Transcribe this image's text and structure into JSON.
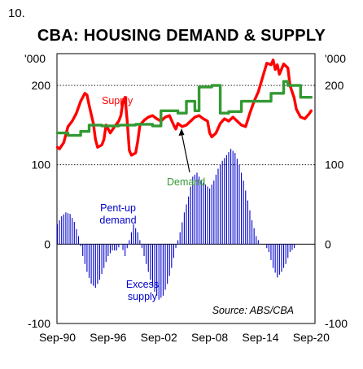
{
  "figure_number": "10.",
  "chart_data": {
    "type": "line",
    "title": "CBA: HOUSING DEMAND & SUPPLY",
    "unit_left": "'000",
    "unit_right": "'000",
    "y_ticks": [
      "200",
      "100",
      "0",
      "-100"
    ],
    "x_ticks": [
      "Sep-90",
      "Sep-96",
      "Sep-02",
      "Sep-08",
      "Sep-14",
      "Sep-20"
    ],
    "ylim": [
      -100,
      240
    ],
    "xlim": [
      1990.7,
      2021.2
    ],
    "grid": true,
    "source": "Source: ABS/CBA",
    "colors": {
      "supply": "#ff0000",
      "demand": "#339933",
      "pentup": "#0000cc"
    },
    "series": [
      {
        "name": "Supply",
        "color": "#ff0000",
        "points": [
          [
            1990.75,
            122
          ],
          [
            1991.0,
            120
          ],
          [
            1991.5,
            128
          ],
          [
            1991.75,
            138
          ],
          [
            1992.0,
            148
          ],
          [
            1992.5,
            155
          ],
          [
            1993.0,
            165
          ],
          [
            1993.5,
            180
          ],
          [
            1994.0,
            190
          ],
          [
            1994.25,
            188
          ],
          [
            1994.5,
            175
          ],
          [
            1995.0,
            152
          ],
          [
            1995.25,
            132
          ],
          [
            1995.5,
            122
          ],
          [
            1996.0,
            125
          ],
          [
            1996.25,
            132
          ],
          [
            1996.5,
            150
          ],
          [
            1997.0,
            140
          ],
          [
            1997.5,
            148
          ],
          [
            1998.0,
            155
          ],
          [
            1998.25,
            162
          ],
          [
            1998.5,
            180
          ],
          [
            1998.75,
            185
          ],
          [
            1999.0,
            155
          ],
          [
            1999.25,
            118
          ],
          [
            1999.5,
            112
          ],
          [
            2000.0,
            115
          ],
          [
            2000.25,
            130
          ],
          [
            2000.5,
            150
          ],
          [
            2001.0,
            156
          ],
          [
            2001.5,
            160
          ],
          [
            2002.0,
            162
          ],
          [
            2002.5,
            158
          ],
          [
            2003.0,
            155
          ],
          [
            2003.5,
            160
          ],
          [
            2004.0,
            162
          ],
          [
            2004.5,
            150
          ],
          [
            2004.75,
            145
          ],
          [
            2005.0,
            152
          ],
          [
            2005.5,
            148
          ],
          [
            2006.0,
            150
          ],
          [
            2006.5,
            155
          ],
          [
            2007.0,
            160
          ],
          [
            2007.5,
            162
          ],
          [
            2008.0,
            158
          ],
          [
            2008.5,
            155
          ],
          [
            2008.75,
            140
          ],
          [
            2009.0,
            135
          ],
          [
            2009.5,
            140
          ],
          [
            2010.0,
            152
          ],
          [
            2010.5,
            158
          ],
          [
            2011.0,
            155
          ],
          [
            2011.5,
            160
          ],
          [
            2012.0,
            155
          ],
          [
            2012.5,
            150
          ],
          [
            2013.0,
            148
          ],
          [
            2013.5,
            165
          ],
          [
            2014.0,
            180
          ],
          [
            2014.5,
            192
          ],
          [
            2015.0,
            210
          ],
          [
            2015.5,
            228
          ],
          [
            2016.0,
            226
          ],
          [
            2016.25,
            232
          ],
          [
            2016.5,
            220
          ],
          [
            2016.75,
            226
          ],
          [
            2017.0,
            214
          ],
          [
            2017.5,
            227
          ],
          [
            2018.0,
            222
          ],
          [
            2018.25,
            200
          ],
          [
            2018.75,
            184
          ],
          [
            2019.0,
            170
          ],
          [
            2019.5,
            160
          ],
          [
            2020.0,
            158
          ],
          [
            2020.5,
            164
          ],
          [
            2020.75,
            168
          ]
        ]
      },
      {
        "name": "Demand",
        "color": "#339933",
        "points": [
          [
            1990.75,
            140
          ],
          [
            1992.0,
            140
          ],
          [
            1992.0,
            137
          ],
          [
            1993.5,
            137
          ],
          [
            1993.5,
            142
          ],
          [
            1994.5,
            142
          ],
          [
            1994.5,
            150
          ],
          [
            1996.0,
            150
          ],
          [
            1996.0,
            149
          ],
          [
            1998.0,
            149
          ],
          [
            1998.0,
            150
          ],
          [
            2000.0,
            150
          ],
          [
            2000.0,
            151
          ],
          [
            2002.0,
            151
          ],
          [
            2002.0,
            149
          ],
          [
            2003.0,
            149
          ],
          [
            2003.0,
            168
          ],
          [
            2005.0,
            168
          ],
          [
            2005.0,
            165
          ],
          [
            2006.0,
            165
          ],
          [
            2006.0,
            180
          ],
          [
            2007.0,
            180
          ],
          [
            2007.0,
            168
          ],
          [
            2007.5,
            168
          ],
          [
            2007.5,
            198
          ],
          [
            2009.0,
            198
          ],
          [
            2009.0,
            200
          ],
          [
            2010.0,
            200
          ],
          [
            2010.0,
            165
          ],
          [
            2011.0,
            165
          ],
          [
            2011.0,
            167
          ],
          [
            2012.5,
            167
          ],
          [
            2012.5,
            180
          ],
          [
            2014.0,
            180
          ],
          [
            2014.0,
            180
          ],
          [
            2016.0,
            180
          ],
          [
            2016.0,
            190
          ],
          [
            2017.5,
            190
          ],
          [
            2017.5,
            205
          ],
          [
            2018.0,
            205
          ],
          [
            2018.0,
            200
          ],
          [
            2019.5,
            200
          ],
          [
            2019.5,
            185
          ],
          [
            2020.75,
            185
          ]
        ]
      }
    ],
    "bars": {
      "name": "Pent-up demand / Excess supply",
      "color": "#0000cc",
      "points": [
        [
          1990.75,
          25
        ],
        [
          1991.25,
          35
        ],
        [
          1991.75,
          40
        ],
        [
          1992.25,
          38
        ],
        [
          1992.75,
          28
        ],
        [
          1993.25,
          10
        ],
        [
          1993.75,
          -15
        ],
        [
          1994.25,
          -35
        ],
        [
          1994.75,
          -50
        ],
        [
          1995.25,
          -55
        ],
        [
          1995.75,
          -45
        ],
        [
          1996.25,
          -30
        ],
        [
          1996.75,
          -15
        ],
        [
          1997.25,
          -8
        ],
        [
          1997.75,
          -8
        ],
        [
          1998.25,
          0
        ],
        [
          1998.75,
          -15
        ],
        [
          1999.25,
          5
        ],
        [
          1999.75,
          25
        ],
        [
          2000.25,
          15
        ],
        [
          2000.75,
          -5
        ],
        [
          2001.25,
          -25
        ],
        [
          2001.75,
          -45
        ],
        [
          2002.25,
          -60
        ],
        [
          2002.75,
          -70
        ],
        [
          2003.25,
          -65
        ],
        [
          2003.75,
          -50
        ],
        [
          2004.25,
          -30
        ],
        [
          2004.75,
          -5
        ],
        [
          2005.25,
          15
        ],
        [
          2005.75,
          40
        ],
        [
          2006.25,
          60
        ],
        [
          2006.75,
          85
        ],
        [
          2007.25,
          90
        ],
        [
          2007.75,
          80
        ],
        [
          2008.25,
          75
        ],
        [
          2008.75,
          70
        ],
        [
          2009.25,
          80
        ],
        [
          2009.75,
          95
        ],
        [
          2010.25,
          105
        ],
        [
          2010.75,
          112
        ],
        [
          2011.25,
          120
        ],
        [
          2011.75,
          115
        ],
        [
          2012.25,
          100
        ],
        [
          2012.75,
          80
        ],
        [
          2013.25,
          55
        ],
        [
          2013.75,
          30
        ],
        [
          2014.25,
          10
        ],
        [
          2014.75,
          0
        ],
        [
          2015.25,
          0
        ],
        [
          2015.75,
          -10
        ],
        [
          2016.25,
          -30
        ],
        [
          2016.75,
          -42
        ],
        [
          2017.25,
          -35
        ],
        [
          2017.75,
          -25
        ],
        [
          2018.25,
          -10
        ],
        [
          2018.75,
          -5
        ]
      ]
    },
    "annotations": {
      "supply": "Supply",
      "demand": "Demand",
      "pentup_1": "Pent-up",
      "pentup_2": "demand",
      "excess_1": "Excess",
      "excess_2": "supply"
    }
  }
}
